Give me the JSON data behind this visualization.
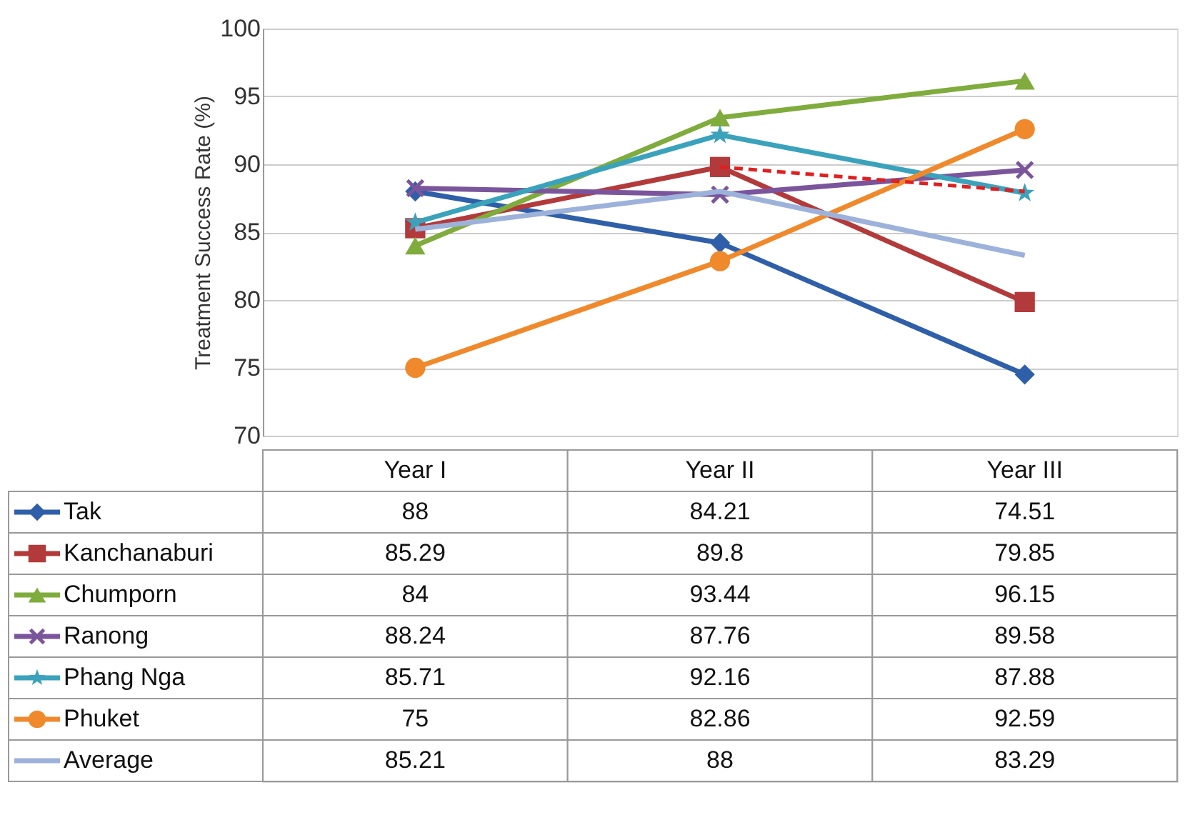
{
  "chart_data": {
    "type": "line",
    "ylabel": "Treatment Success Rate (%)",
    "categories": [
      "Year I",
      "Year II",
      "Year III"
    ],
    "ylim": [
      70,
      100
    ],
    "yticks": [
      70,
      75,
      80,
      85,
      90,
      95,
      100
    ],
    "grid": "y",
    "legend": "bottom",
    "series": [
      {
        "name": "Tak",
        "color": "#2f5fa8",
        "marker": "diamond",
        "values": [
          88,
          84.21,
          74.51
        ],
        "value_labels": [
          "88",
          "84.21",
          "74.51"
        ]
      },
      {
        "name": "Kanchanaburi",
        "color": "#b33a3a",
        "marker": "square",
        "values": [
          85.29,
          89.8,
          79.85
        ],
        "value_labels": [
          "85.29",
          "89.8",
          "79.85"
        ]
      },
      {
        "name": "Chumporn",
        "color": "#7fac3c",
        "marker": "triangle",
        "values": [
          84,
          93.44,
          96.15
        ],
        "value_labels": [
          "84",
          "93.44",
          "96.15"
        ]
      },
      {
        "name": "Ranong",
        "color": "#7b559c",
        "marker": "cross",
        "values": [
          88.24,
          87.76,
          89.58
        ],
        "value_labels": [
          "88.24",
          "87.76",
          "89.58"
        ]
      },
      {
        "name": "Phang Nga",
        "color": "#3ba2bc",
        "marker": "star",
        "values": [
          85.71,
          92.16,
          87.88
        ],
        "value_labels": [
          "85.71",
          "92.16",
          "87.88"
        ]
      },
      {
        "name": "Phuket",
        "color": "#f0892c",
        "marker": "circle",
        "values": [
          75,
          82.86,
          92.59
        ],
        "value_labels": [
          "75",
          "82.86",
          "92.59"
        ]
      },
      {
        "name": "Average",
        "color": "#9db2da",
        "marker": "none",
        "values": [
          85.21,
          88,
          83.29
        ],
        "value_labels": [
          "85.21",
          "88",
          "83.29"
        ]
      },
      {
        "color": "#e02020",
        "marker": "none",
        "line_style": "dashed",
        "values": [
          null,
          89.8,
          88
        ]
      }
    ]
  }
}
